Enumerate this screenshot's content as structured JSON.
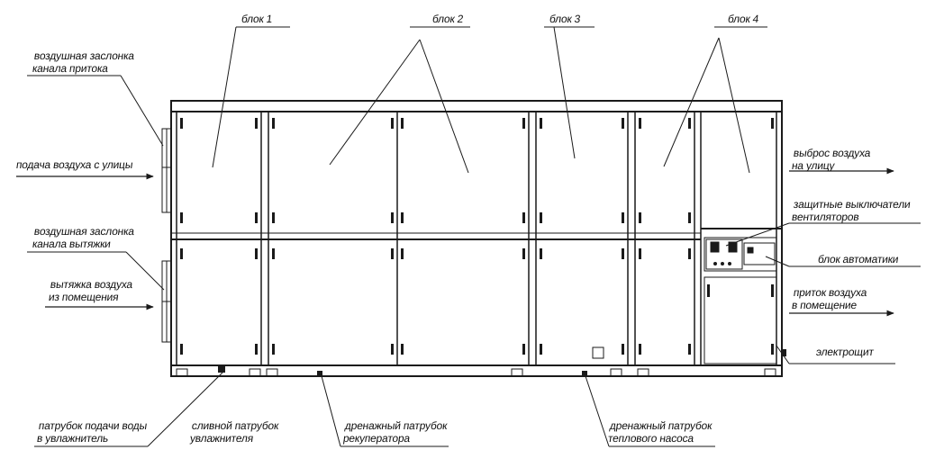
{
  "labels": {
    "block1": "блок 1",
    "block2": "блок 2",
    "block3": "блок 3",
    "block4": "блок 4",
    "supply_damper_l1": "воздушная заслонка",
    "supply_damper_l2": "канала притока",
    "street_air_supply": "подача воздуха с улицы",
    "exhaust_damper_l1": "воздушная заслонка",
    "exhaust_damper_l2": "канала вытяжки",
    "room_exhaust_l1": "вытяжка воздуха",
    "room_exhaust_l2": "из помещения",
    "street_discharge_l1": "выброс воздуха",
    "street_discharge_l2": "на улицу",
    "fan_switches_l1": "защитные выключатели",
    "fan_switches_l2": "вентиляторов",
    "automation_unit": "блок автоматики",
    "room_supply_l1": "приток воздуха",
    "room_supply_l2": "в помещение",
    "switchboard": "электрощит",
    "water_inlet_l1": "патрубок подачи воды",
    "water_inlet_l2": "в увлажнитель",
    "humidifier_drain_l1": "сливной патрубок",
    "humidifier_drain_l2": "увлажнителя",
    "recuperator_drain_l1": "дренажный патрубок",
    "recuperator_drain_l2": "рекуператора",
    "heatpump_drain_l1": "дренажный патрубок",
    "heatpump_drain_l2": "теплового насоса"
  },
  "colors": {
    "line": "#1a1a1a",
    "background": "#ffffff"
  }
}
